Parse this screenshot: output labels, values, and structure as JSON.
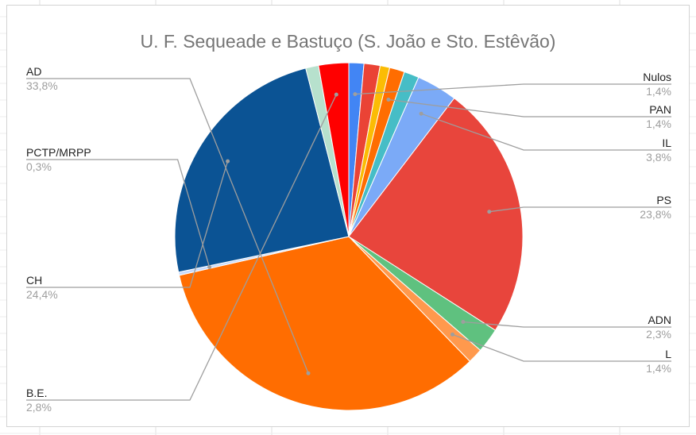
{
  "chart_data": {
    "type": "pie",
    "title": "U. F. Sequeade e Bastuço (S. João e Sto. Estêvão)",
    "legend": "none",
    "slices": [
      {
        "name": "Nulos",
        "value_label": "1,4%",
        "value": 1.4,
        "color": "#4285f4",
        "label_side": "right"
      },
      {
        "name": "",
        "value_label": "",
        "value": 1.5,
        "color": "#ea4335",
        "label_side": "none"
      },
      {
        "name": "",
        "value_label": "",
        "value": 0.9,
        "color": "#fbbc04",
        "label_side": "none"
      },
      {
        "name": "PAN",
        "value_label": "1,4%",
        "value": 1.4,
        "color": "#ff6d01",
        "label_side": "right"
      },
      {
        "name": "",
        "value_label": "",
        "value": 1.4,
        "color": "#46bdc6",
        "label_side": "none"
      },
      {
        "name": "IL",
        "value_label": "3,8%",
        "value": 3.8,
        "color": "#7baaf7",
        "label_side": "right"
      },
      {
        "name": "PS",
        "value_label": "23,8%",
        "value": 23.8,
        "color": "#e8453c",
        "label_side": "right"
      },
      {
        "name": "ADN",
        "value_label": "2,3%",
        "value": 2.3,
        "color": "#5fc17f",
        "label_side": "right"
      },
      {
        "name": "L",
        "value_label": "1,4%",
        "value": 1.4,
        "color": "#ff994d",
        "label_side": "right"
      },
      {
        "name": "AD",
        "value_label": "33,8%",
        "value": 33.8,
        "color": "#ff6d01",
        "label_side": "left"
      },
      {
        "name": "PCTP/MRPP",
        "value_label": "0,3%",
        "value": 0.3,
        "color": "#c6dafc",
        "label_side": "left"
      },
      {
        "name": "CH",
        "value_label": "24,4%",
        "value": 24.4,
        "color": "#0b5394",
        "label_side": "left"
      },
      {
        "name": "",
        "value_label": "",
        "value": 1.2,
        "color": "#b7e1cd",
        "label_side": "none"
      },
      {
        "name": "B.E.",
        "value_label": "2,8%",
        "value": 2.8,
        "color": "#ff0000",
        "label_side": "left"
      }
    ]
  }
}
